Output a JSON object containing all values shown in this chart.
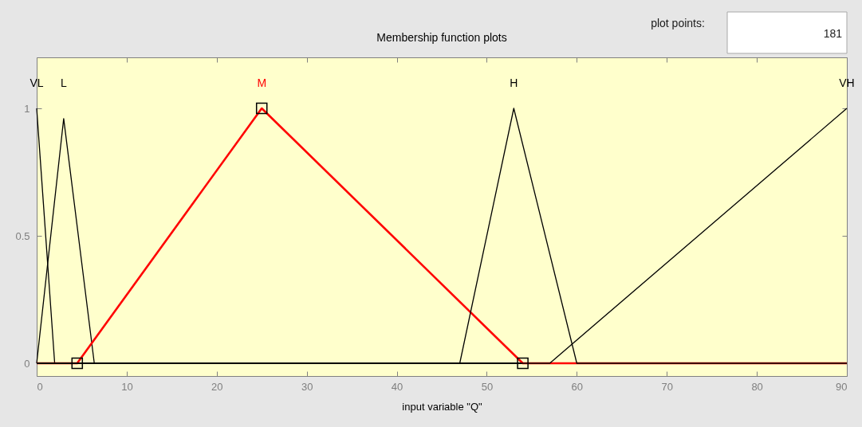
{
  "chart_data": {
    "type": "line",
    "title": "Membership function plots",
    "xlabel": "input variable \"Q\"",
    "annotations": [
      "plot points:",
      "181"
    ],
    "xlim": [
      0,
      90
    ],
    "xticks": [
      0,
      10,
      20,
      30,
      40,
      50,
      60,
      70,
      80,
      90
    ],
    "ylim": [
      -0.05,
      1.2
    ],
    "yticks": [
      0,
      0.5,
      1
    ],
    "grid": false,
    "legend": false,
    "marker": "none",
    "line_style": "solid",
    "series": [
      {
        "name": "VL",
        "color": "#000000",
        "x": [
          0,
          2,
          90
        ],
        "values": [
          1,
          0,
          0
        ]
      },
      {
        "name": "L",
        "color": "#000000",
        "x": [
          0,
          3,
          6.4,
          90
        ],
        "values": [
          0,
          0.96,
          0,
          0
        ]
      },
      {
        "name": "M",
        "color": "#ff0000",
        "x": [
          0,
          4.5,
          25,
          54,
          90
        ],
        "values": [
          0,
          0,
          1,
          0,
          0
        ]
      },
      {
        "name": "H",
        "color": "#000000",
        "x": [
          0,
          47,
          53,
          60,
          90
        ],
        "values": [
          0,
          0,
          1,
          0,
          0
        ]
      },
      {
        "name": "VH",
        "color": "#000000",
        "x": [
          0,
          57,
          90
        ],
        "values": [
          0,
          0,
          1
        ]
      },
      {
        "type": "scatter",
        "marker": "square",
        "color": "#000000",
        "x": [
          4.5,
          25,
          54
        ],
        "values": [
          0,
          1,
          0
        ]
      }
    ]
  }
}
